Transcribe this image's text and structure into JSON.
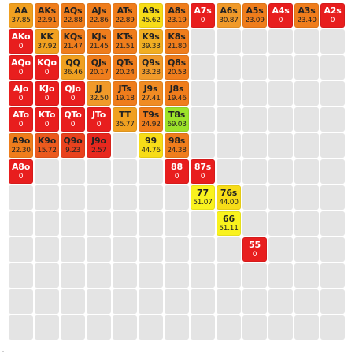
{
  "matrix": {
    "ranks": [
      "A",
      "K",
      "Q",
      "J",
      "T",
      "9",
      "8",
      "7",
      "6",
      "5",
      "4",
      "3",
      "2"
    ],
    "empty_color": "#e4e4e4",
    "cells": [
      {
        "r": 0,
        "c": 0,
        "hand": "AA",
        "value": "37.85",
        "color": "#f0a020"
      },
      {
        "r": 0,
        "c": 1,
        "hand": "AKs",
        "value": "22.91",
        "color": "#ef7d1c"
      },
      {
        "r": 0,
        "c": 2,
        "hand": "AQs",
        "value": "22.88",
        "color": "#ef7d1c"
      },
      {
        "r": 0,
        "c": 3,
        "hand": "AJs",
        "value": "22.86",
        "color": "#ef7d1c"
      },
      {
        "r": 0,
        "c": 4,
        "hand": "ATs",
        "value": "22.89",
        "color": "#ef7d1c"
      },
      {
        "r": 0,
        "c": 5,
        "hand": "A9s",
        "value": "45.62",
        "color": "#f7dc18"
      },
      {
        "r": 0,
        "c": 6,
        "hand": "A8s",
        "value": "23.19",
        "color": "#ef7d1c"
      },
      {
        "r": 0,
        "c": 7,
        "hand": "A7s",
        "value": "0",
        "color": "#e81e1e"
      },
      {
        "r": 0,
        "c": 8,
        "hand": "A6s",
        "value": "30.87",
        "color": "#f09a2a"
      },
      {
        "r": 0,
        "c": 9,
        "hand": "A5s",
        "value": "23.09",
        "color": "#ef7d1c"
      },
      {
        "r": 0,
        "c": 10,
        "hand": "A4s",
        "value": "0",
        "color": "#e81e1e"
      },
      {
        "r": 0,
        "c": 11,
        "hand": "A3s",
        "value": "23.40",
        "color": "#ef7d1c"
      },
      {
        "r": 0,
        "c": 12,
        "hand": "A2s",
        "value": "0",
        "color": "#e81e1e"
      },
      {
        "r": 1,
        "c": 0,
        "hand": "AKo",
        "value": "0",
        "color": "#e81e1e"
      },
      {
        "r": 1,
        "c": 1,
        "hand": "KK",
        "value": "37.92",
        "color": "#f0a020"
      },
      {
        "r": 1,
        "c": 2,
        "hand": "KQs",
        "value": "21.47",
        "color": "#ef7d1c"
      },
      {
        "r": 1,
        "c": 3,
        "hand": "KJs",
        "value": "21.45",
        "color": "#ef7d1c"
      },
      {
        "r": 1,
        "c": 4,
        "hand": "KTs",
        "value": "21.51",
        "color": "#ef7d1c"
      },
      {
        "r": 1,
        "c": 5,
        "hand": "K9s",
        "value": "39.33",
        "color": "#f1ae22"
      },
      {
        "r": 1,
        "c": 6,
        "hand": "K8s",
        "value": "21.80",
        "color": "#ef7d1c"
      },
      {
        "r": 2,
        "c": 0,
        "hand": "AQo",
        "value": "0",
        "color": "#e81e1e"
      },
      {
        "r": 2,
        "c": 1,
        "hand": "KQo",
        "value": "0",
        "color": "#e81e1e"
      },
      {
        "r": 2,
        "c": 2,
        "hand": "QQ",
        "value": "36.46",
        "color": "#f0a020"
      },
      {
        "r": 2,
        "c": 3,
        "hand": "QJs",
        "value": "20.17",
        "color": "#ef7d1c"
      },
      {
        "r": 2,
        "c": 4,
        "hand": "QTs",
        "value": "20.24",
        "color": "#ef7d1c"
      },
      {
        "r": 2,
        "c": 5,
        "hand": "Q9s",
        "value": "33.28",
        "color": "#f09a2a"
      },
      {
        "r": 2,
        "c": 6,
        "hand": "Q8s",
        "value": "20.53",
        "color": "#ef7d1c"
      },
      {
        "r": 3,
        "c": 0,
        "hand": "AJo",
        "value": "0",
        "color": "#e81e1e"
      },
      {
        "r": 3,
        "c": 1,
        "hand": "KJo",
        "value": "0",
        "color": "#e81e1e"
      },
      {
        "r": 3,
        "c": 2,
        "hand": "QJo",
        "value": "0",
        "color": "#e81e1e"
      },
      {
        "r": 3,
        "c": 3,
        "hand": "JJ",
        "value": "32.50",
        "color": "#f09a2a"
      },
      {
        "r": 3,
        "c": 4,
        "hand": "JTs",
        "value": "19.18",
        "color": "#ef7d1c"
      },
      {
        "r": 3,
        "c": 5,
        "hand": "J9s",
        "value": "27.41",
        "color": "#f08c24"
      },
      {
        "r": 3,
        "c": 6,
        "hand": "J8s",
        "value": "19.46",
        "color": "#ef7d1c"
      },
      {
        "r": 4,
        "c": 0,
        "hand": "ATo",
        "value": "0",
        "color": "#e81e1e"
      },
      {
        "r": 4,
        "c": 1,
        "hand": "KTo",
        "value": "0",
        "color": "#e81e1e"
      },
      {
        "r": 4,
        "c": 2,
        "hand": "QTo",
        "value": "0",
        "color": "#e81e1e"
      },
      {
        "r": 4,
        "c": 3,
        "hand": "JTo",
        "value": "0",
        "color": "#e81e1e"
      },
      {
        "r": 4,
        "c": 4,
        "hand": "TT",
        "value": "35.77",
        "color": "#f0a020"
      },
      {
        "r": 4,
        "c": 5,
        "hand": "T9s",
        "value": "24.92",
        "color": "#ef7d1c"
      },
      {
        "r": 4,
        "c": 6,
        "hand": "T8s",
        "value": "69.03",
        "color": "#9ce22a"
      },
      {
        "r": 5,
        "c": 0,
        "hand": "A9o",
        "value": "22.30",
        "color": "#ef7d1c"
      },
      {
        "r": 5,
        "c": 1,
        "hand": "K9o",
        "value": "15.72",
        "color": "#eb5a1e"
      },
      {
        "r": 5,
        "c": 2,
        "hand": "Q9o",
        "value": "9.23",
        "color": "#e9421e"
      },
      {
        "r": 5,
        "c": 3,
        "hand": "J9o",
        "value": "2.57",
        "color": "#e8281e"
      },
      {
        "r": 5,
        "c": 5,
        "hand": "99",
        "value": "44.76",
        "color": "#f7dc18"
      },
      {
        "r": 5,
        "c": 6,
        "hand": "98s",
        "value": "24.38",
        "color": "#ef7d1c"
      },
      {
        "r": 6,
        "c": 0,
        "hand": "A8o",
        "value": "0",
        "color": "#e81e1e"
      },
      {
        "r": 6,
        "c": 6,
        "hand": "88",
        "value": "0",
        "color": "#e81e1e"
      },
      {
        "r": 6,
        "c": 7,
        "hand": "87s",
        "value": "0",
        "color": "#e81e1e"
      },
      {
        "r": 7,
        "c": 7,
        "hand": "77",
        "value": "51.07",
        "color": "#f9f21e"
      },
      {
        "r": 7,
        "c": 8,
        "hand": "76s",
        "value": "44.00",
        "color": "#f7dc18"
      },
      {
        "r": 8,
        "c": 8,
        "hand": "66",
        "value": "51.11",
        "color": "#f9f21e"
      },
      {
        "r": 9,
        "c": 9,
        "hand": "55",
        "value": "0",
        "color": "#e81e1e"
      }
    ]
  }
}
